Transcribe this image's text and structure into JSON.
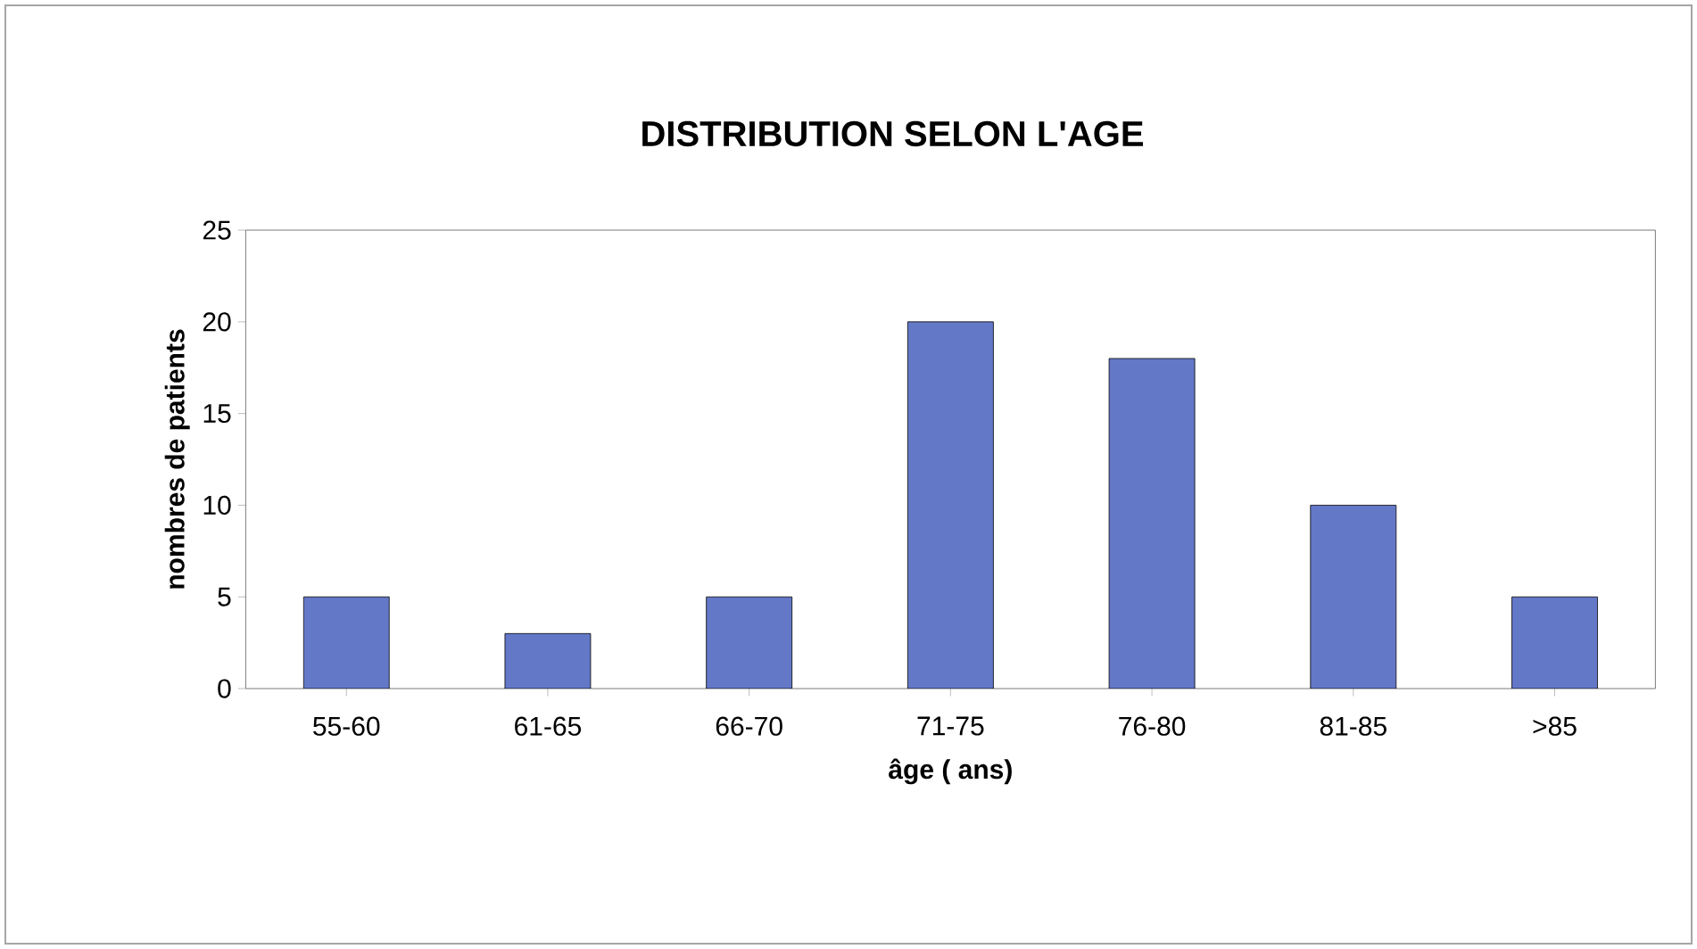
{
  "chart_data": {
    "type": "bar",
    "title": "DISTRIBUTION SELON L'AGE",
    "xlabel": "âge ( ans)",
    "ylabel": "nombres de patients",
    "categories": [
      "55-60",
      "61-65",
      "66-70",
      "71-75",
      "76-80",
      "81-85",
      ">85"
    ],
    "values": [
      5,
      3,
      5,
      20,
      18,
      10,
      5
    ],
    "color": "#6478c8",
    "ylim": [
      0,
      25
    ],
    "yticks": [
      0,
      5,
      10,
      15,
      20,
      25
    ]
  }
}
